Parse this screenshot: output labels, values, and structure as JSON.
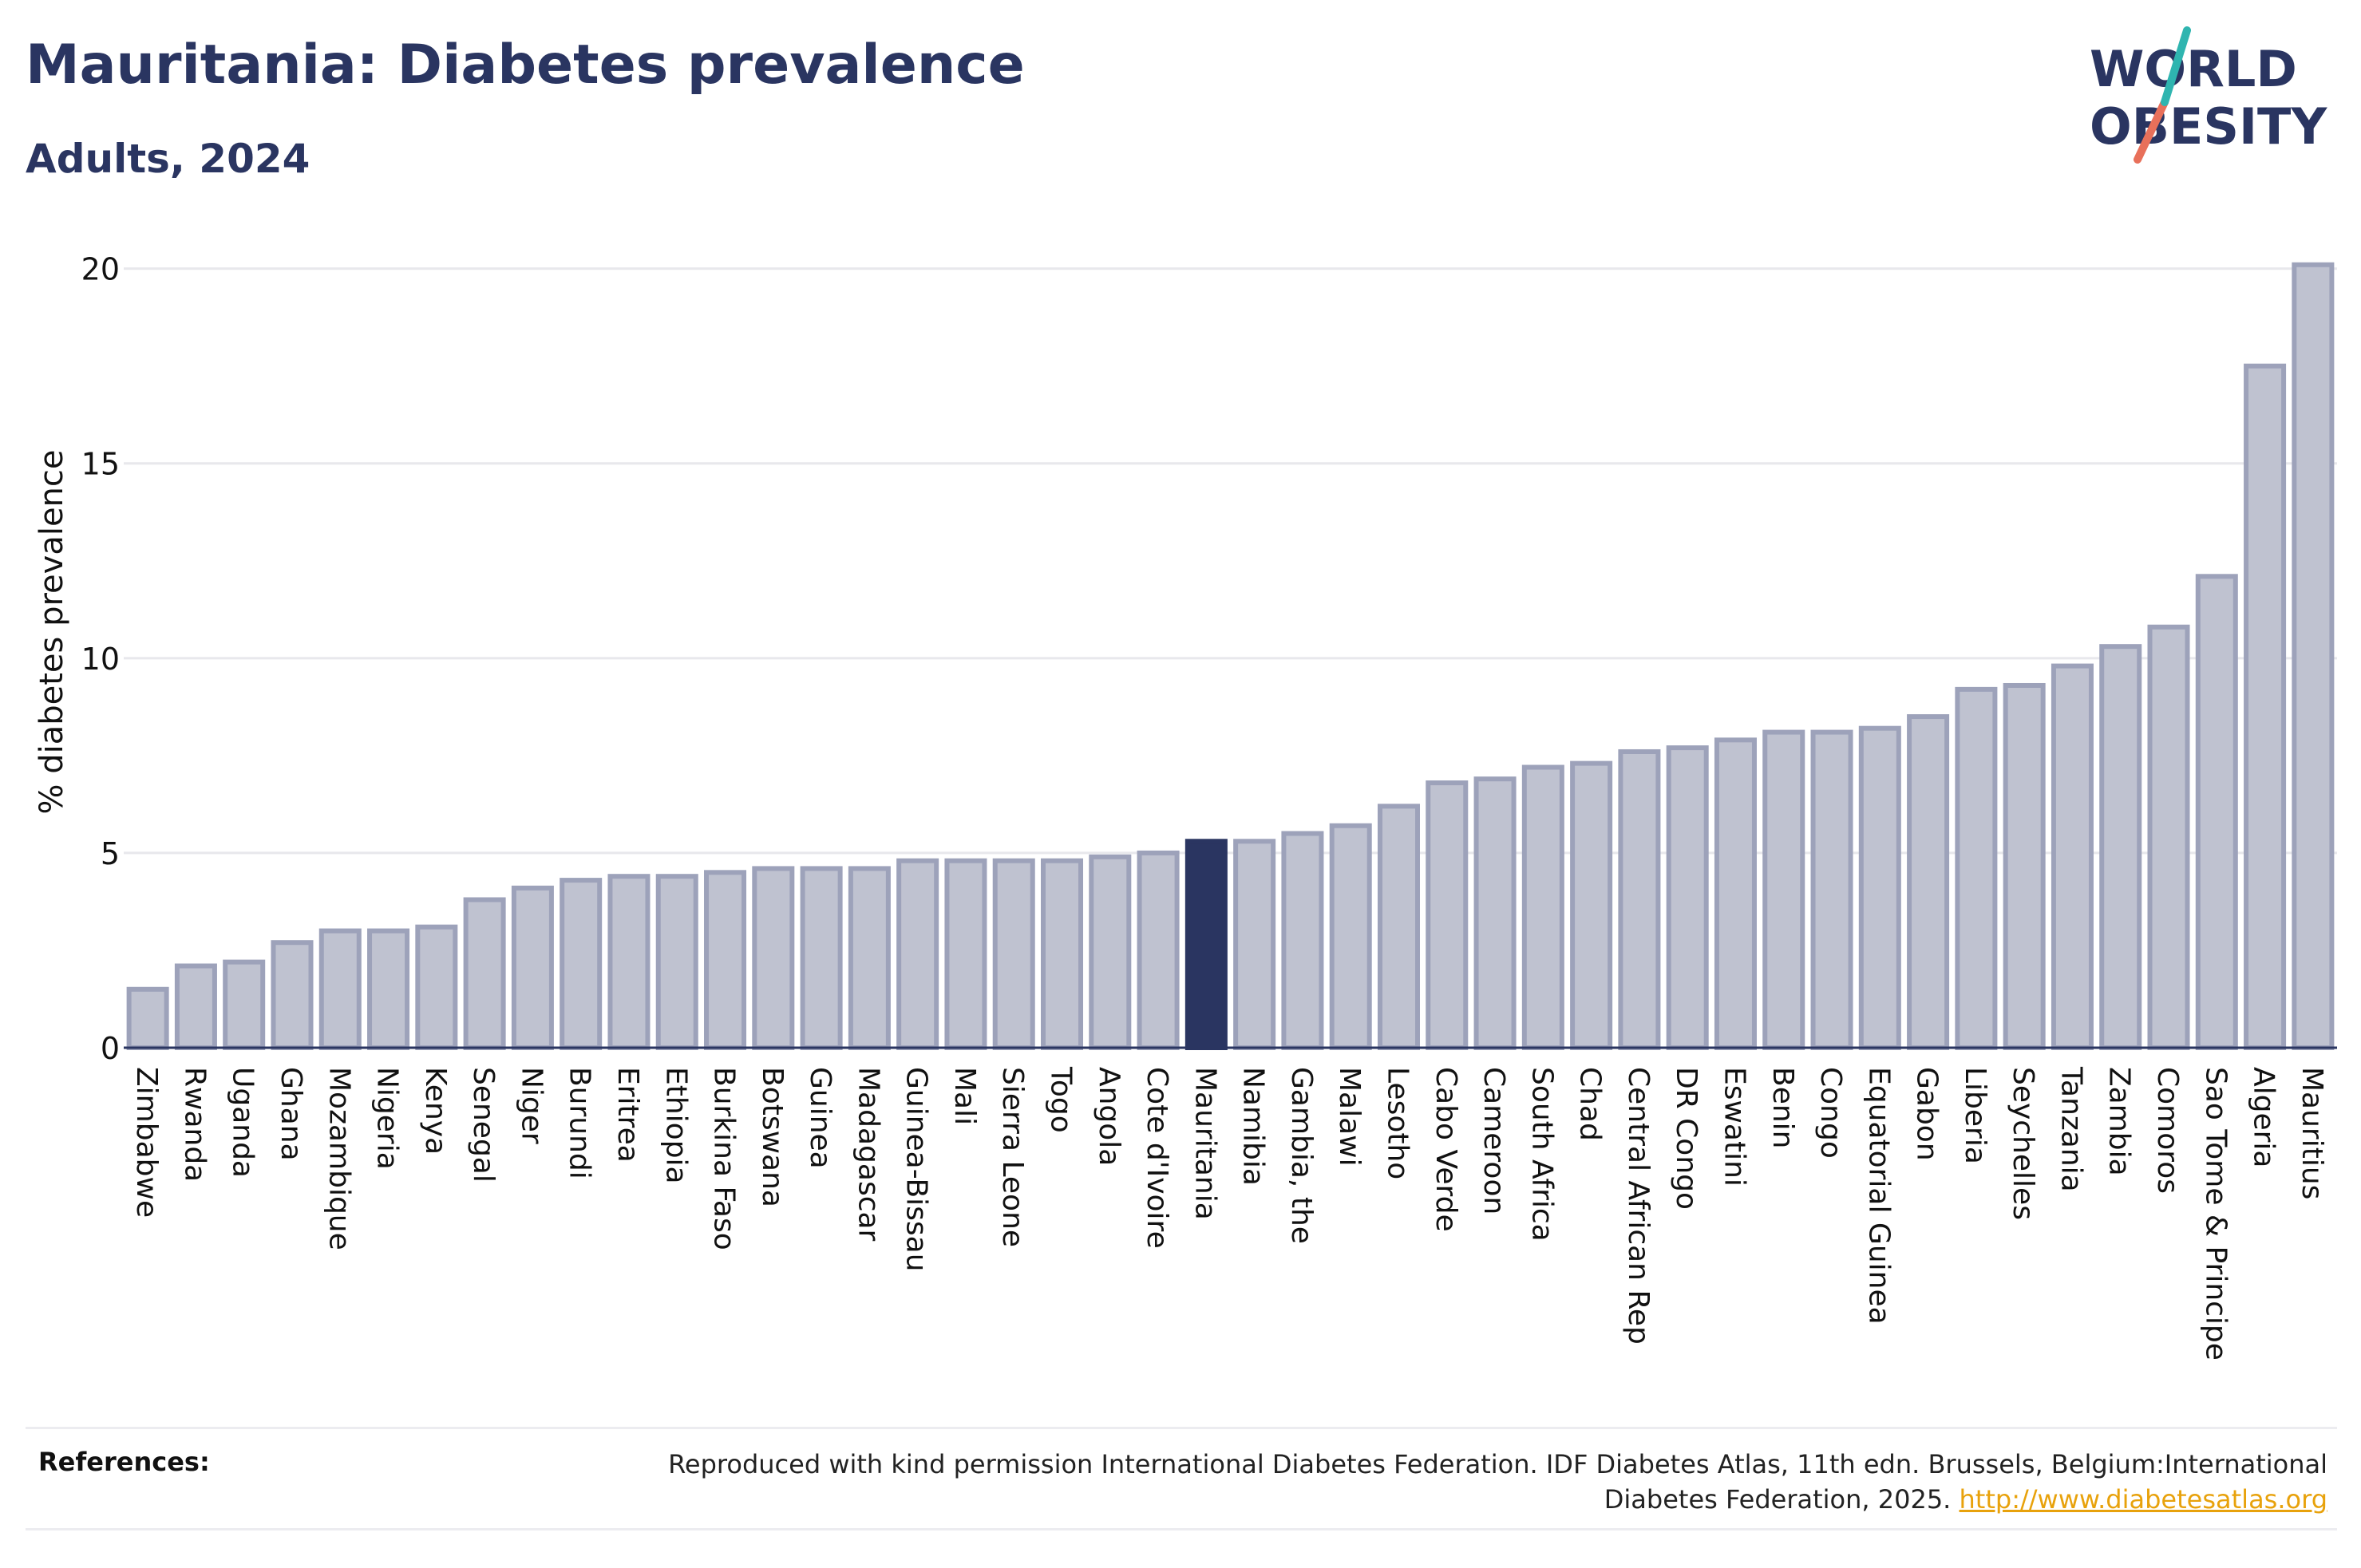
{
  "title": "Mauritania: Diabetes prevalence",
  "subtitle": "Adults, 2024",
  "logo": {
    "line1": "WORLD",
    "line2": "OBESITY"
  },
  "references": {
    "label": "References:",
    "text": "Reproduced with kind permission International Diabetes Federation. IDF Diabetes Atlas, 11th edn. Brussels, Belgium:International Diabetes Federation, 2025.",
    "link": "http://www.diabetesatlas.org"
  },
  "colors": {
    "bar_fill": "#bfc2d0",
    "bar_stroke": "#9da2ba",
    "highlight": "#2a3561",
    "text": "#2a3561",
    "grid": "#e8e8ec",
    "link": "#e8a20c"
  },
  "chart_data": {
    "type": "bar",
    "title": "Mauritania: Diabetes prevalence",
    "subtitle": "Adults, 2024",
    "xlabel": "",
    "ylabel": "% diabetes prevalence",
    "ylim": [
      0,
      20.3
    ],
    "yticks": [
      0,
      5,
      10,
      15,
      20
    ],
    "grid": true,
    "highlight": "Mauritania",
    "categories": [
      "Zimbabwe",
      "Rwanda",
      "Uganda",
      "Ghana",
      "Mozambique",
      "Nigeria",
      "Kenya",
      "Senegal",
      "Niger",
      "Burundi",
      "Eritrea",
      "Ethiopia",
      "Burkina Faso",
      "Botswana",
      "Guinea",
      "Madagascar",
      "Guinea-Bissau",
      "Mali",
      "Sierra Leone",
      "Togo",
      "Angola",
      "Cote d'Ivoire",
      "Mauritania",
      "Namibia",
      "Gambia, the",
      "Malawi",
      "Lesotho",
      "Cabo Verde",
      "Cameroon",
      "South Africa",
      "Chad",
      "Central African Rep",
      "DR Congo",
      "Eswatini",
      "Benin",
      "Congo",
      "Equatorial Guinea",
      "Gabon",
      "Liberia",
      "Seychelles",
      "Tanzania",
      "Zambia",
      "Comoros",
      "Sao Tome & Principe",
      "Algeria",
      "Mauritius"
    ],
    "values": [
      1.5,
      2.1,
      2.2,
      2.7,
      3.0,
      3.0,
      3.1,
      3.8,
      4.1,
      4.3,
      4.4,
      4.4,
      4.5,
      4.6,
      4.6,
      4.6,
      4.8,
      4.8,
      4.8,
      4.8,
      4.9,
      5.0,
      5.3,
      5.3,
      5.5,
      5.7,
      6.2,
      6.8,
      6.9,
      7.2,
      7.3,
      7.6,
      7.7,
      7.9,
      8.1,
      8.1,
      8.2,
      8.5,
      9.2,
      9.3,
      9.8,
      10.3,
      10.8,
      12.1,
      17.5,
      20.1
    ]
  }
}
